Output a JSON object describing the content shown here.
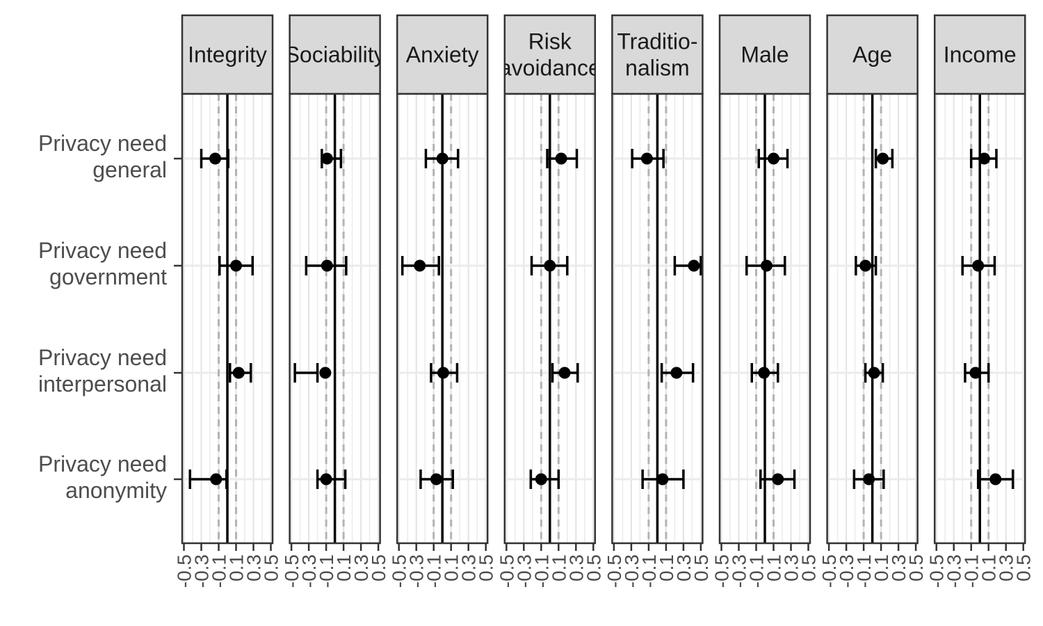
{
  "chart_data": {
    "type": "scatter",
    "subtype": "faceted coefficient plot with confidence intervals",
    "facets": [
      "Integrity",
      "Sociability",
      "Anxiety",
      "Risk avoidance",
      "Traditio-nalism",
      "Male",
      "Age",
      "Income"
    ],
    "facet_label_lines": [
      [
        "Integrity"
      ],
      [
        "Sociability"
      ],
      [
        "Anxiety"
      ],
      [
        "Risk",
        "avoidance"
      ],
      [
        "Traditio-",
        "nalism"
      ],
      [
        "Male"
      ],
      [
        "Age"
      ],
      [
        "Income"
      ]
    ],
    "rows": [
      [
        "Privacy need",
        "general"
      ],
      [
        "Privacy need",
        "government"
      ],
      [
        "Privacy need",
        "interpersonal"
      ],
      [
        "Privacy need",
        "anonymity"
      ]
    ],
    "x_ticks": [
      "-0.5",
      "-0.3",
      "-0.1",
      "0.1",
      "0.3",
      "0.5"
    ],
    "x_tick_values": [
      -0.5,
      -0.3,
      -0.1,
      0.1,
      0.3,
      0.5
    ],
    "xlim": [
      -0.52,
      0.52
    ],
    "reference_line": 0,
    "dashed_lines": [
      -0.1,
      0.1
    ],
    "grid": true,
    "estimates": [
      [
        -0.14,
        0.1,
        0.13,
        -0.13
      ],
      [
        -0.09,
        -0.09,
        -0.11,
        -0.1
      ],
      [
        0.0,
        -0.26,
        0.01,
        -0.07
      ],
      [
        0.13,
        0.0,
        0.17,
        -0.1
      ],
      [
        -0.12,
        0.42,
        0.22,
        0.06
      ],
      [
        0.1,
        0.02,
        -0.01,
        0.15
      ],
      [
        0.12,
        -0.08,
        0.02,
        -0.04
      ],
      [
        0.05,
        -0.02,
        -0.05,
        0.18
      ]
    ],
    "ci_lower": [
      [
        -0.3,
        -0.09,
        0.03,
        -0.43
      ],
      [
        -0.15,
        -0.33,
        -0.46,
        -0.2
      ],
      [
        -0.19,
        -0.46,
        -0.13,
        -0.25
      ],
      [
        -0.03,
        -0.21,
        0.03,
        -0.22
      ],
      [
        -0.29,
        0.2,
        0.05,
        -0.17
      ],
      [
        -0.07,
        -0.21,
        -0.15,
        -0.05
      ],
      [
        0.04,
        -0.19,
        -0.08,
        -0.21
      ],
      [
        -0.1,
        -0.2,
        -0.17,
        -0.02
      ]
    ],
    "ci_upper": [
      [
        0.01,
        0.29,
        0.27,
        -0.01
      ],
      [
        0.07,
        0.13,
        -0.2,
        0.12
      ],
      [
        0.18,
        -0.04,
        0.17,
        0.12
      ],
      [
        0.31,
        0.2,
        0.32,
        0.1
      ],
      [
        0.07,
        0.5,
        0.41,
        0.3
      ],
      [
        0.26,
        0.23,
        0.15,
        0.34
      ],
      [
        0.23,
        0.04,
        0.12,
        0.13
      ],
      [
        0.19,
        0.17,
        0.1,
        0.38
      ]
    ]
  }
}
